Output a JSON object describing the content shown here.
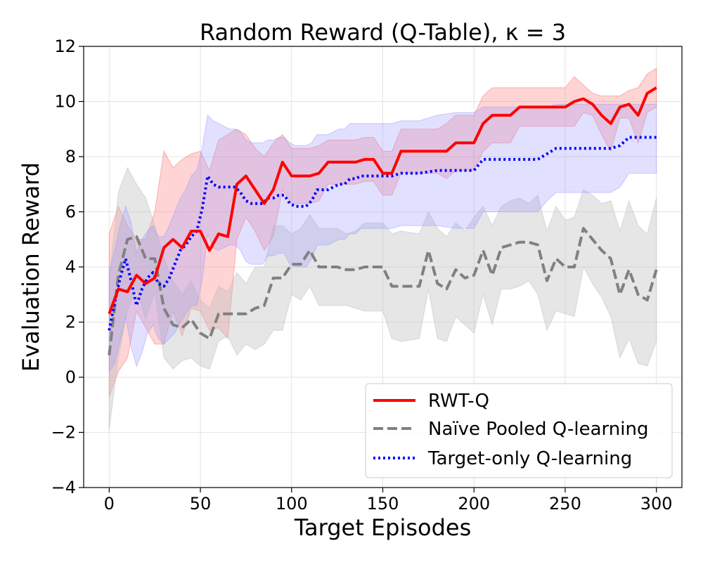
{
  "chart_data": {
    "type": "line",
    "title": "Random Reward (Q-Table), κ = 3",
    "xlabel": "Target Episodes",
    "ylabel": "Evaluation Reward",
    "xlim": [
      -14,
      314
    ],
    "ylim": [
      -4,
      12
    ],
    "xticks": [
      0,
      50,
      100,
      150,
      200,
      250,
      300
    ],
    "yticks": [
      -4,
      -2,
      0,
      2,
      4,
      6,
      8,
      10,
      12
    ],
    "grid": true,
    "legend_position": "lower-right",
    "series": [
      {
        "name": "RWT-Q",
        "color": "#ff0000",
        "fill": "#ff6f6f",
        "style": "solid",
        "x": [
          0,
          5,
          10,
          15,
          20,
          25,
          30,
          35,
          40,
          45,
          50,
          55,
          60,
          65,
          70,
          75,
          80,
          85,
          90,
          95,
          100,
          105,
          110,
          115,
          120,
          125,
          130,
          135,
          140,
          145,
          150,
          155,
          160,
          170,
          180,
          185,
          190,
          195,
          200,
          205,
          210,
          215,
          220,
          225,
          230,
          235,
          240,
          245,
          250,
          255,
          260,
          265,
          270,
          275,
          280,
          285,
          290,
          295,
          300
        ],
        "mean": [
          2.3,
          3.2,
          3.1,
          3.7,
          3.4,
          3.6,
          4.7,
          5.0,
          4.7,
          5.3,
          5.3,
          4.6,
          5.2,
          5.1,
          7.0,
          7.3,
          6.8,
          6.3,
          6.8,
          7.8,
          7.3,
          7.3,
          7.3,
          7.4,
          7.8,
          7.8,
          7.8,
          7.8,
          7.9,
          7.9,
          7.4,
          7.4,
          8.2,
          8.2,
          8.2,
          8.2,
          8.5,
          8.5,
          8.5,
          9.2,
          9.5,
          9.5,
          9.5,
          9.8,
          9.8,
          9.8,
          9.8,
          9.8,
          9.8,
          10.0,
          10.1,
          9.9,
          9.5,
          9.2,
          9.8,
          9.9,
          9.5,
          10.3,
          10.5
        ],
        "upper": [
          5.2,
          6.2,
          5.5,
          5.0,
          5.0,
          6.0,
          8.2,
          7.6,
          7.9,
          8.1,
          8.2,
          7.5,
          8.6,
          8.8,
          9.0,
          8.8,
          8.3,
          8.0,
          8.5,
          8.8,
          8.3,
          8.3,
          8.3,
          8.4,
          8.6,
          8.6,
          8.6,
          8.6,
          8.7,
          8.7,
          8.2,
          8.2,
          9.0,
          9.0,
          9.0,
          9.2,
          9.5,
          9.5,
          9.5,
          10.2,
          10.5,
          10.5,
          10.5,
          10.5,
          10.5,
          10.5,
          10.5,
          10.5,
          10.5,
          10.9,
          10.6,
          10.3,
          10.2,
          10.2,
          10.2,
          10.4,
          10.5,
          11.0,
          11.2
        ],
        "lower": [
          -0.7,
          0.2,
          0.7,
          2.4,
          1.8,
          1.2,
          1.2,
          2.4,
          1.5,
          2.5,
          2.4,
          1.7,
          1.8,
          1.4,
          5.0,
          5.8,
          5.3,
          4.6,
          5.1,
          6.8,
          6.3,
          6.3,
          6.3,
          6.4,
          7.0,
          7.0,
          7.0,
          7.0,
          7.1,
          7.1,
          6.6,
          6.6,
          7.4,
          7.4,
          7.4,
          7.2,
          7.5,
          7.5,
          7.5,
          8.2,
          8.5,
          8.5,
          8.5,
          9.1,
          9.1,
          9.1,
          9.1,
          9.1,
          9.1,
          9.1,
          9.6,
          9.5,
          8.8,
          8.2,
          9.4,
          9.4,
          8.5,
          9.6,
          9.8
        ]
      },
      {
        "name": "Naïve Pooled Q-learning",
        "color": "#808080",
        "fill": "#bdbdbd",
        "style": "dashed",
        "x": [
          0,
          5,
          10,
          15,
          20,
          25,
          30,
          35,
          40,
          45,
          50,
          55,
          60,
          65,
          70,
          75,
          80,
          85,
          90,
          95,
          100,
          105,
          110,
          115,
          120,
          125,
          130,
          135,
          140,
          145,
          150,
          155,
          160,
          170,
          175,
          180,
          185,
          190,
          195,
          200,
          205,
          210,
          215,
          220,
          225,
          230,
          235,
          240,
          245,
          250,
          255,
          260,
          265,
          270,
          275,
          280,
          285,
          290,
          295,
          300
        ],
        "mean": [
          0.8,
          3.7,
          5.0,
          5.1,
          4.3,
          4.3,
          2.5,
          1.9,
          1.8,
          2.1,
          1.6,
          1.4,
          2.3,
          2.3,
          2.3,
          2.3,
          2.5,
          2.6,
          3.6,
          3.6,
          4.1,
          4.1,
          4.6,
          4.0,
          4.0,
          4.0,
          3.9,
          3.9,
          4.0,
          4.0,
          4.0,
          3.3,
          3.3,
          3.3,
          4.6,
          3.4,
          3.2,
          3.9,
          3.6,
          3.7,
          4.6,
          3.7,
          4.7,
          4.8,
          4.9,
          4.9,
          4.8,
          3.5,
          4.3,
          4.0,
          4.0,
          5.4,
          5.0,
          4.6,
          4.3,
          3.0,
          3.9,
          3.0,
          2.8,
          3.9
        ],
        "upper": [
          3.5,
          6.7,
          7.6,
          7.0,
          6.5,
          5.5,
          4.3,
          3.5,
          3.0,
          3.5,
          2.8,
          2.5,
          3.3,
          3.1,
          3.8,
          3.4,
          4.0,
          4.0,
          5.5,
          5.5,
          5.2,
          5.4,
          5.9,
          5.4,
          5.4,
          5.4,
          5.2,
          5.3,
          5.6,
          5.6,
          5.6,
          5.2,
          5.3,
          5.2,
          6.0,
          5.4,
          5.1,
          5.6,
          5.3,
          5.8,
          6.2,
          5.5,
          6.2,
          6.4,
          6.5,
          6.3,
          6.6,
          5.3,
          6.2,
          5.7,
          5.8,
          6.8,
          6.6,
          6.3,
          6.4,
          5.3,
          6.4,
          5.5,
          5.2,
          6.5
        ],
        "lower": [
          -1.9,
          0.7,
          2.4,
          3.2,
          2.1,
          3.1,
          0.7,
          0.3,
          0.6,
          0.7,
          0.4,
          0.3,
          1.3,
          1.5,
          0.8,
          1.2,
          1.0,
          1.2,
          1.7,
          1.7,
          3.0,
          2.8,
          3.3,
          2.6,
          2.6,
          2.6,
          2.6,
          2.5,
          2.4,
          2.4,
          2.4,
          1.4,
          1.3,
          1.4,
          3.2,
          1.4,
          1.3,
          2.2,
          1.9,
          1.6,
          3.0,
          1.9,
          3.2,
          3.2,
          3.3,
          3.5,
          3.0,
          1.7,
          2.4,
          2.3,
          2.2,
          4.0,
          3.4,
          2.9,
          2.2,
          0.7,
          1.4,
          0.5,
          0.4,
          1.3
        ]
      },
      {
        "name": "Target-only Q-learning",
        "color": "#0000ff",
        "fill": "#9a9aff",
        "style": "dotted",
        "x": [
          0,
          3,
          6,
          9,
          12,
          15,
          18,
          21,
          24,
          27,
          30,
          33,
          36,
          39,
          42,
          45,
          48,
          51,
          54,
          57,
          60,
          63,
          66,
          69,
          72,
          75,
          78,
          81,
          84,
          87,
          90,
          93,
          96,
          99,
          102,
          105,
          108,
          111,
          114,
          117,
          120,
          123,
          126,
          129,
          132,
          135,
          138,
          141,
          144,
          147,
          150,
          155,
          160,
          170,
          180,
          190,
          200,
          205,
          210,
          220,
          230,
          235,
          240,
          245,
          250,
          255,
          260,
          270,
          275,
          280,
          285,
          290,
          300
        ],
        "mean": [
          1.7,
          2.7,
          3.6,
          4.3,
          3.5,
          2.6,
          3.2,
          3.6,
          3.8,
          3.4,
          3.3,
          3.6,
          4.1,
          4.6,
          4.8,
          5.1,
          5.3,
          6.1,
          7.3,
          7.0,
          6.9,
          6.9,
          6.9,
          6.9,
          6.7,
          6.4,
          6.3,
          6.3,
          6.3,
          6.5,
          6.5,
          6.6,
          6.6,
          6.3,
          6.2,
          6.2,
          6.2,
          6.4,
          6.8,
          6.8,
          6.8,
          6.9,
          7.0,
          7.0,
          7.2,
          7.2,
          7.3,
          7.3,
          7.3,
          7.3,
          7.3,
          7.3,
          7.4,
          7.4,
          7.5,
          7.5,
          7.5,
          7.9,
          7.9,
          7.9,
          7.9,
          7.9,
          8.1,
          8.3,
          8.3,
          8.3,
          8.3,
          8.3,
          8.3,
          8.4,
          8.7,
          8.7,
          8.7
        ],
        "upper": [
          3.8,
          4.6,
          5.5,
          6.2,
          5.6,
          4.5,
          5.0,
          5.3,
          5.5,
          5.1,
          5.1,
          5.5,
          6.0,
          6.5,
          6.8,
          7.3,
          7.5,
          8.3,
          9.5,
          9.3,
          9.2,
          9.1,
          9.0,
          9.0,
          8.9,
          8.6,
          8.5,
          8.5,
          8.5,
          8.6,
          8.6,
          8.7,
          8.7,
          8.5,
          8.4,
          8.4,
          8.4,
          8.5,
          8.8,
          8.8,
          8.8,
          8.9,
          9.0,
          9.0,
          9.2,
          9.2,
          9.2,
          9.2,
          9.2,
          9.2,
          9.2,
          9.2,
          9.3,
          9.3,
          9.5,
          9.6,
          9.6,
          9.8,
          9.8,
          9.8,
          9.8,
          9.8,
          9.8,
          9.9,
          9.9,
          9.9,
          9.9,
          9.9,
          9.9,
          9.9,
          9.9,
          9.9,
          9.9
        ],
        "lower": [
          0.2,
          0.5,
          1.3,
          2.2,
          1.1,
          0.4,
          0.9,
          1.6,
          1.9,
          1.4,
          1.2,
          1.4,
          1.6,
          2.0,
          2.3,
          2.6,
          2.6,
          3.5,
          5.2,
          4.7,
          4.6,
          4.7,
          4.8,
          4.8,
          4.6,
          4.2,
          4.1,
          4.1,
          4.1,
          4.4,
          4.4,
          4.5,
          4.5,
          4.1,
          4.0,
          4.0,
          4.0,
          4.3,
          4.8,
          4.8,
          4.8,
          4.9,
          5.0,
          5.0,
          5.2,
          5.2,
          5.4,
          5.4,
          5.4,
          5.4,
          5.4,
          5.4,
          5.5,
          5.5,
          5.5,
          5.4,
          5.4,
          6.0,
          6.0,
          6.0,
          6.0,
          6.0,
          6.4,
          6.7,
          6.7,
          6.7,
          6.7,
          6.7,
          6.7,
          6.9,
          7.4,
          7.4,
          7.4
        ]
      }
    ]
  }
}
